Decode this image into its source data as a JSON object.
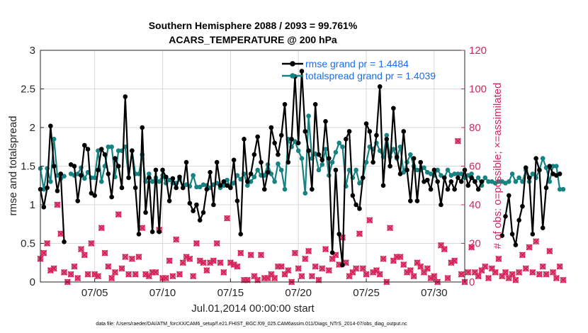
{
  "colors": {
    "rmse": "#000000",
    "spread": "#178282",
    "obs": "#d7265b",
    "legend_text": "#1a6df0",
    "grid": "#d9d9d9"
  },
  "footer": "data file: /Users/raeder/DAI/ATM_forcXX/CAM6_setup/f.e21.FHIST_BGC.f09_025.CAM6assim.011/Diags_NTrS_2014-07/obs_diag_output.nc",
  "chart_data": {
    "type": "line",
    "title": "Southern Hemisphere 2088 / 2093 = 99.761%",
    "subtitle": "ACARS_TEMPERATURE @ 200 hPa",
    "xlabel": "Jul.01,2014 00:00:00 start",
    "ylabel": "rmse and totalspread",
    "ylabel_right": "# of obs: o=possible; ×=assimilated",
    "xlim": [
      1.0,
      32.25
    ],
    "ylim": [
      0,
      3
    ],
    "ylim_right": [
      0,
      120
    ],
    "xticks": [
      5,
      10,
      15,
      20,
      25,
      30
    ],
    "xtick_labels": [
      "07/05",
      "07/10",
      "07/15",
      "07/20",
      "07/25",
      "07/30"
    ],
    "yticks": [
      0,
      0.5,
      1,
      1.5,
      2,
      2.5,
      3
    ],
    "ytick_labels": [
      "0",
      "0.5",
      "1",
      "1.5",
      "2",
      "2.5",
      "3"
    ],
    "yticks_right": [
      0,
      20,
      40,
      60,
      80,
      100,
      120
    ],
    "ytick_labels_right": [
      "0",
      "20",
      "40",
      "60",
      "80",
      "100",
      "120"
    ],
    "grid": true,
    "legend_position": "top-right",
    "step_days": 0.25,
    "x_start": 1.0,
    "series": [
      {
        "name": "rmse grand pr = 1.4484",
        "axis": "left",
        "values": [
          1.2,
          0.97,
          1.22,
          2.02,
          1.5,
          1.18,
          1.4,
          0.52,
          null,
          1.52,
          1.5,
          1.05,
          1.38,
          1.77,
          1.72,
          1.15,
          1.12,
          1.45,
          1.72,
          1.65,
          1.4,
          1.1,
          1.6,
          1.5,
          1.22,
          2.4,
          1.35,
          1.7,
          1.22,
          0.62,
          2.0,
          0.9,
          1.35,
          0.65,
          1.45,
          0.65,
          1.45,
          1.36,
          1.05,
          1.34,
          1.22,
          1.36,
          1.22,
          1.55,
          1.02,
          0.92,
          1.0,
          0.8,
          0.9,
          1.2,
          1.42,
          1.0,
          1.55,
          1.25,
          1.3,
          1.25,
          1.22,
          1.58,
          1.05,
          0.62,
          1.85,
          1.3,
          1.4,
          1.65,
          1.88,
          1.55,
          1.2,
          1.42,
          2.0,
          1.8,
          1.65,
          1.9,
          2.3,
          1.55,
          1.85,
          2.66,
          1.8,
          2.73,
          1.95,
          1.7,
          1.2,
          2.3,
          1.65,
          1.58,
          2.08,
          1.6,
          0.38,
          1.45,
          0.62,
          0.22,
          1.85,
          1.95,
          1.12,
          1.0,
          0.95,
          1.35,
          2.05,
          1.95,
          1.55,
          1.9,
          2.53,
          1.25,
          1.85,
          1.5,
          2.25,
          1.62,
          1.4,
          1.95,
          1.45,
          1.05,
          1.6,
          1.05,
          1.55,
          1.3,
          1.32,
          1.2,
          1.45,
          1.3,
          1.0,
          1.35,
          1.2,
          1.3,
          1.2,
          1.35,
          1.3,
          1.45,
          1.25,
          1.35,
          1.3,
          1.2,
          1.3,
          null,
          null,
          null,
          null,
          null,
          0.6,
          0.85,
          1.12,
          0.62,
          0.48,
          0.8,
          0.98,
          1.48,
          1.35,
          0.62,
          1.6,
          1.45,
          0.7,
          1.22,
          1.5,
          1.4,
          1.38,
          1.4
        ]
      },
      {
        "name": "totalspread grand pr = 1.4039",
        "axis": "left",
        "values": [
          1.47,
          1.2,
          1.47,
          1.3,
          1.85,
          1.38,
          1.34,
          1.37,
          null,
          1.4,
          1.38,
          1.4,
          1.48,
          1.34,
          1.42,
          1.35,
          1.35,
          1.7,
          1.3,
          1.5,
          1.75,
          1.75,
          1.36,
          1.7,
          1.7,
          1.75,
          1.35,
          1.7,
          1.4,
          1.4,
          1.65,
          1.3,
          1.4,
          1.3,
          1.35,
          1.3,
          1.38,
          1.28,
          1.32,
          1.28,
          1.28,
          1.33,
          1.22,
          1.26,
          1.24,
          1.38,
          1.23,
          1.23,
          1.26,
          1.25,
          1.22,
          1.26,
          1.28,
          1.22,
          1.25,
          1.32,
          1.23,
          1.28,
          1.38,
          1.33,
          1.4,
          1.25,
          1.3,
          1.36,
          1.45,
          1.38,
          1.38,
          1.52,
          1.4,
          1.3,
          1.53,
          1.45,
          1.2,
          1.85,
          1.75,
          1.82,
          1.7,
          1.6,
          1.15,
          2.15,
          1.6,
          1.66,
          1.45,
          1.52,
          1.72,
          1.38,
          1.55,
          1.68,
          1.8,
          1.75,
          1.24,
          1.45,
          1.35,
          1.45,
          1.28,
          1.35,
          1.55,
          1.75,
          1.72,
          1.8,
          1.7,
          1.62,
          1.9,
          1.62,
          1.72,
          1.6,
          1.75,
          1.42,
          1.55,
          1.65,
          1.5,
          1.45,
          1.45,
          1.48,
          1.42,
          1.4,
          1.38,
          1.45,
          1.38,
          1.35,
          1.45,
          1.38,
          1.4,
          1.4,
          1.4,
          1.35,
          1.38,
          1.4,
          1.3,
          1.35,
          1.25,
          1.35,
          1.3,
          1.3,
          1.28,
          1.3,
          1.3,
          1.28,
          1.3,
          1.4,
          1.3,
          1.35,
          1.3,
          1.45,
          1.3,
          1.4,
          1.35,
          1.45,
          1.6,
          1.48,
          1.3,
          1.5,
          1.5,
          1.2,
          1.2
        ]
      },
      {
        "name": "obs possible",
        "axis": "right",
        "values": [
          12,
          15,
          20,
          6,
          7,
          40,
          25,
          5,
          0,
          4,
          8,
          2,
          17,
          14,
          4,
          20,
          4,
          3,
          28,
          15,
          8,
          2,
          5,
          35,
          7,
          13,
          4,
          12,
          4,
          13,
          28,
          4,
          3,
          5,
          5,
          27,
          2,
          2,
          11,
          3,
          22,
          4,
          10,
          13,
          12,
          3,
          20,
          11,
          10,
          6,
          10,
          11,
          20,
          10,
          5,
          33,
          10,
          9,
          8,
          15,
          1,
          1,
          14,
          3,
          1,
          14,
          2,
          2,
          4,
          2,
          8,
          8,
          4,
          6,
          0,
          15,
          7,
          3,
          12,
          16,
          3,
          8,
          1,
          7,
          17,
          6,
          12,
          14,
          9,
          23,
          10,
          3,
          5,
          7,
          25,
          7,
          4,
          32,
          5,
          6,
          4,
          12,
          0,
          28,
          11,
          13,
          13,
          9,
          5,
          6,
          3,
          10,
          8,
          5,
          7,
          2,
          3,
          0,
          19,
          17,
          2,
          10,
          11,
          73,
          4,
          0,
          5,
          18,
          5,
          3,
          6,
          8,
          2,
          7,
          5,
          12,
          3,
          5,
          2,
          4,
          1,
          5,
          14,
          7,
          18,
          5,
          21,
          4,
          8,
          4,
          16,
          5,
          2,
          8,
          1
        ]
      },
      {
        "name": "obs assimilated",
        "axis": "right",
        "values": [
          12,
          15,
          20,
          6,
          7,
          40,
          25,
          5,
          0,
          4,
          8,
          2,
          17,
          14,
          4,
          20,
          4,
          3,
          28,
          15,
          8,
          2,
          5,
          35,
          7,
          13,
          4,
          12,
          4,
          13,
          28,
          4,
          3,
          5,
          5,
          27,
          2,
          2,
          11,
          3,
          22,
          4,
          10,
          13,
          12,
          3,
          20,
          11,
          10,
          6,
          10,
          11,
          20,
          10,
          5,
          33,
          10,
          9,
          8,
          15,
          1,
          1,
          14,
          3,
          1,
          14,
          2,
          2,
          4,
          2,
          8,
          8,
          4,
          6,
          0,
          15,
          7,
          3,
          12,
          16,
          3,
          8,
          1,
          7,
          17,
          6,
          12,
          14,
          9,
          23,
          10,
          3,
          5,
          7,
          25,
          7,
          4,
          32,
          5,
          6,
          4,
          12,
          0,
          28,
          11,
          13,
          13,
          9,
          5,
          6,
          3,
          10,
          8,
          5,
          7,
          2,
          3,
          0,
          19,
          17,
          2,
          10,
          11,
          73,
          4,
          0,
          5,
          18,
          5,
          3,
          6,
          8,
          2,
          7,
          5,
          12,
          3,
          5,
          2,
          4,
          1,
          5,
          14,
          7,
          18,
          5,
          21,
          4,
          8,
          4,
          16,
          5,
          2,
          8,
          1
        ]
      }
    ]
  }
}
